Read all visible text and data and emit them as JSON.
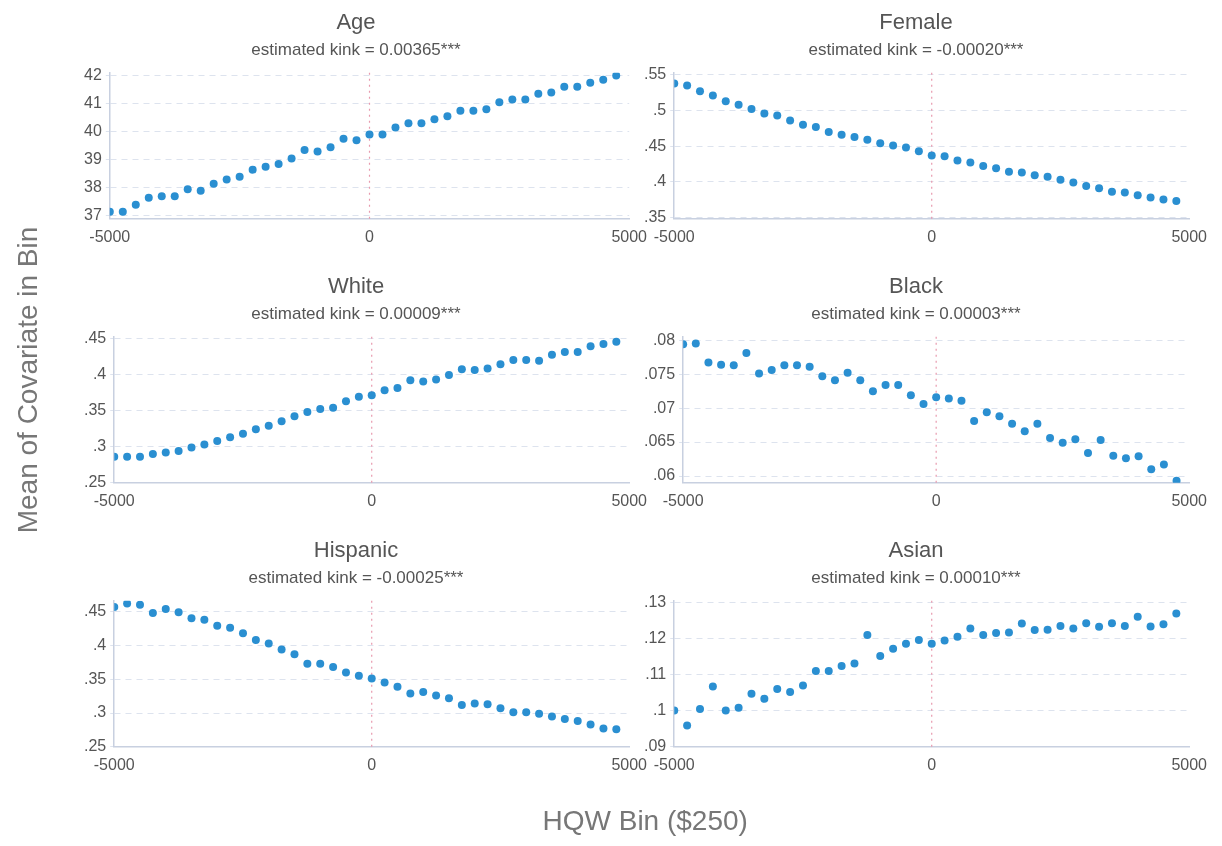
{
  "chart_data": [
    {
      "type": "scatter",
      "title": "Age",
      "subtitle": "estimated kink = 0.00365***",
      "x": [
        -5000,
        -4750,
        -4500,
        -4250,
        -4000,
        -3750,
        -3500,
        -3250,
        -3000,
        -2750,
        -2500,
        -2250,
        -2000,
        -1750,
        -1500,
        -1250,
        -1000,
        -750,
        -500,
        -250,
        0,
        250,
        500,
        750,
        1000,
        1250,
        1500,
        1750,
        2000,
        2250,
        2500,
        2750,
        3000,
        3250,
        3500,
        3750,
        4000,
        4250,
        4500,
        4750
      ],
      "series": [
        {
          "color": "#2a8fd1",
          "values": [
            37.15,
            37.15,
            37.4,
            37.65,
            37.7,
            37.7,
            37.95,
            37.9,
            38.15,
            38.3,
            38.4,
            38.65,
            38.75,
            38.85,
            39.05,
            39.35,
            39.3,
            39.45,
            39.75,
            39.7,
            39.9,
            39.9,
            40.15,
            40.3,
            40.3,
            40.45,
            40.55,
            40.75,
            40.75,
            40.8,
            41.05,
            41.15,
            41.15,
            41.35,
            41.4,
            41.6,
            41.6,
            41.75,
            41.85,
            42.0
          ]
        }
      ],
      "xlim": [
        -5000,
        5000
      ],
      "xticks": [
        -5000,
        0,
        5000
      ],
      "ylim": [
        36.9,
        42.1
      ],
      "yticks": [
        37,
        38,
        39,
        40,
        41,
        42
      ],
      "grid": "y",
      "marker": "circle",
      "ref_lines": [
        {
          "axis": "x",
          "value": 0,
          "color": "#e89aae",
          "line_style": "dotted"
        }
      ]
    },
    {
      "type": "scatter",
      "title": "Female",
      "subtitle": "estimated kink = -0.00020***",
      "x": [
        -5000,
        -4750,
        -4500,
        -4250,
        -4000,
        -3750,
        -3500,
        -3250,
        -3000,
        -2750,
        -2500,
        -2250,
        -2000,
        -1750,
        -1500,
        -1250,
        -1000,
        -750,
        -500,
        -250,
        0,
        250,
        500,
        750,
        1000,
        1250,
        1500,
        1750,
        2000,
        2250,
        2500,
        2750,
        3000,
        3250,
        3500,
        3750,
        4000,
        4250,
        4500,
        4750
      ],
      "series": [
        {
          "color": "#2a8fd1",
          "values": [
            0.538,
            0.535,
            0.527,
            0.521,
            0.513,
            0.508,
            0.502,
            0.496,
            0.493,
            0.486,
            0.48,
            0.477,
            0.47,
            0.466,
            0.463,
            0.459,
            0.454,
            0.451,
            0.448,
            0.443,
            0.437,
            0.436,
            0.43,
            0.427,
            0.422,
            0.419,
            0.414,
            0.413,
            0.409,
            0.407,
            0.403,
            0.399,
            0.394,
            0.391,
            0.386,
            0.385,
            0.381,
            0.378,
            0.375,
            0.373
          ]
        }
      ],
      "xlim": [
        -5000,
        5000
      ],
      "xticks": [
        -5000,
        0,
        5000
      ],
      "ylim": [
        0.348,
        0.553
      ],
      "yticks": [
        {
          "value": 0.35,
          "label": ".35"
        },
        {
          "value": 0.4,
          "label": ".4"
        },
        {
          "value": 0.45,
          "label": ".45"
        },
        {
          "value": 0.5,
          "label": ".5"
        },
        {
          "value": 0.55,
          "label": ".55"
        }
      ],
      "grid": "y",
      "marker": "circle",
      "ref_lines": [
        {
          "axis": "x",
          "value": 0,
          "color": "#e89aae",
          "line_style": "dotted"
        }
      ]
    },
    {
      "type": "scatter",
      "title": "White",
      "subtitle": "estimated kink = 0.00009***",
      "ylabel": "Mean of Covariate in Bin",
      "x": [
        -5000,
        -4750,
        -4500,
        -4250,
        -4000,
        -3750,
        -3500,
        -3250,
        -3000,
        -2750,
        -2500,
        -2250,
        -2000,
        -1750,
        -1500,
        -1250,
        -1000,
        -750,
        -500,
        -250,
        0,
        250,
        500,
        750,
        1000,
        1250,
        1500,
        1750,
        2000,
        2250,
        2500,
        2750,
        3000,
        3250,
        3500,
        3750,
        4000,
        4250,
        4500,
        4750
      ],
      "series": [
        {
          "color": "#2a8fd1",
          "values": [
            0.286,
            0.286,
            0.286,
            0.29,
            0.292,
            0.294,
            0.299,
            0.303,
            0.308,
            0.313,
            0.318,
            0.324,
            0.329,
            0.335,
            0.342,
            0.348,
            0.352,
            0.354,
            0.363,
            0.369,
            0.371,
            0.378,
            0.381,
            0.392,
            0.39,
            0.393,
            0.399,
            0.407,
            0.406,
            0.408,
            0.414,
            0.42,
            0.42,
            0.419,
            0.427,
            0.431,
            0.431,
            0.439,
            0.442,
            0.445
          ]
        }
      ],
      "xlim": [
        -5000,
        5000
      ],
      "xticks": [
        -5000,
        0,
        5000
      ],
      "ylim": [
        0.25,
        0.452
      ],
      "yticks": [
        {
          "value": 0.25,
          "label": ".25"
        },
        {
          "value": 0.3,
          "label": ".3"
        },
        {
          "value": 0.35,
          "label": ".35"
        },
        {
          "value": 0.4,
          "label": ".4"
        },
        {
          "value": 0.45,
          "label": ".45"
        }
      ],
      "grid": "y",
      "marker": "circle",
      "ref_lines": [
        {
          "axis": "x",
          "value": 0,
          "color": "#e89aae",
          "line_style": "dotted"
        }
      ]
    },
    {
      "type": "scatter",
      "title": "Black",
      "subtitle": "estimated kink = 0.00003***",
      "x": [
        -5000,
        -4750,
        -4500,
        -4250,
        -4000,
        -3750,
        -3500,
        -3250,
        -3000,
        -2750,
        -2500,
        -2250,
        -2000,
        -1750,
        -1500,
        -1250,
        -1000,
        -750,
        -500,
        -250,
        0,
        250,
        500,
        750,
        1000,
        1250,
        1500,
        1750,
        2000,
        2250,
        2500,
        2750,
        3000,
        3250,
        3500,
        3750,
        4000,
        4250,
        4500,
        4750
      ],
      "series": [
        {
          "color": "#2a8fd1",
          "values": [
            0.0794,
            0.0795,
            0.0767,
            0.0764,
            0.0763,
            0.0781,
            0.0751,
            0.0756,
            0.0763,
            0.0763,
            0.0761,
            0.0747,
            0.0741,
            0.0752,
            0.0741,
            0.0725,
            0.0734,
            0.0734,
            0.0719,
            0.0706,
            0.0716,
            0.0714,
            0.0711,
            0.0681,
            0.0694,
            0.0688,
            0.0677,
            0.0666,
            0.0677,
            0.0656,
            0.0649,
            0.0654,
            0.0634,
            0.0653,
            0.063,
            0.0626,
            0.0629,
            0.061,
            0.0617,
            0.0593
          ]
        }
      ],
      "xlim": [
        -5000,
        5000
      ],
      "xticks": [
        -5000,
        0,
        5000
      ],
      "ylim": [
        0.059,
        0.0805
      ],
      "yticks": [
        {
          "value": 0.06,
          "label": ".06"
        },
        {
          "value": 0.065,
          "label": ".065"
        },
        {
          "value": 0.07,
          "label": ".07"
        },
        {
          "value": 0.075,
          "label": ".075"
        },
        {
          "value": 0.08,
          "label": ".08"
        }
      ],
      "grid": "y",
      "marker": "circle",
      "ref_lines": [
        {
          "axis": "x",
          "value": 0,
          "color": "#e89aae",
          "line_style": "dotted"
        }
      ]
    },
    {
      "type": "scatter",
      "title": "Hispanic",
      "subtitle": "estimated kink = -0.00025***",
      "xlabel": "HQW Bin ($250)",
      "x": [
        -5000,
        -4750,
        -4500,
        -4250,
        -4000,
        -3750,
        -3500,
        -3250,
        -3000,
        -2750,
        -2500,
        -2250,
        -2000,
        -1750,
        -1500,
        -1250,
        -1000,
        -750,
        -500,
        -250,
        0,
        250,
        500,
        750,
        1000,
        1250,
        1500,
        1750,
        2000,
        2250,
        2500,
        2750,
        3000,
        3250,
        3500,
        3750,
        4000,
        4250,
        4500,
        4750
      ],
      "series": [
        {
          "color": "#2a8fd1",
          "values": [
            0.457,
            0.462,
            0.46,
            0.448,
            0.454,
            0.449,
            0.44,
            0.438,
            0.429,
            0.426,
            0.418,
            0.408,
            0.403,
            0.394,
            0.387,
            0.373,
            0.373,
            0.368,
            0.36,
            0.355,
            0.351,
            0.345,
            0.339,
            0.329,
            0.331,
            0.326,
            0.322,
            0.312,
            0.314,
            0.313,
            0.307,
            0.301,
            0.301,
            0.299,
            0.295,
            0.291,
            0.288,
            0.283,
            0.277,
            0.276
          ]
        }
      ],
      "xlim": [
        -5000,
        5000
      ],
      "xticks": [
        -5000,
        0,
        5000
      ],
      "ylim": [
        0.25,
        0.466
      ],
      "yticks": [
        {
          "value": 0.25,
          "label": ".25"
        },
        {
          "value": 0.3,
          "label": ".3"
        },
        {
          "value": 0.35,
          "label": ".35"
        },
        {
          "value": 0.4,
          "label": ".4"
        },
        {
          "value": 0.45,
          "label": ".45"
        }
      ],
      "grid": "y",
      "marker": "circle",
      "ref_lines": [
        {
          "axis": "x",
          "value": 0,
          "color": "#e89aae",
          "line_style": "dotted"
        }
      ]
    },
    {
      "type": "scatter",
      "title": "Asian",
      "subtitle": "estimated kink = 0.00010***",
      "x": [
        -5000,
        -4750,
        -4500,
        -4250,
        -4000,
        -3750,
        -3500,
        -3250,
        -3000,
        -2750,
        -2500,
        -2250,
        -2000,
        -1750,
        -1500,
        -1250,
        -1000,
        -750,
        -500,
        -250,
        0,
        250,
        500,
        750,
        1000,
        1250,
        1500,
        1750,
        2000,
        2250,
        2500,
        2750,
        3000,
        3250,
        3500,
        3750,
        4000,
        4250,
        4500,
        4750
      ],
      "series": [
        {
          "color": "#2a8fd1",
          "values": [
            0.1001,
            0.0959,
            0.1005,
            0.1067,
            0.1001,
            0.1008,
            0.1047,
            0.1033,
            0.106,
            0.1052,
            0.107,
            0.111,
            0.111,
            0.1124,
            0.1131,
            0.121,
            0.1152,
            0.1172,
            0.1186,
            0.1196,
            0.1186,
            0.1195,
            0.1205,
            0.1228,
            0.121,
            0.1216,
            0.1217,
            0.1242,
            0.1224,
            0.1225,
            0.1235,
            0.1228,
            0.1243,
            0.1233,
            0.1243,
            0.1235,
            0.1261,
            0.1234,
            0.124,
            0.127
          ]
        }
      ],
      "xlim": [
        -5000,
        5000
      ],
      "xticks": [
        -5000,
        0,
        5000
      ],
      "ylim": [
        0.09,
        0.1305
      ],
      "yticks": [
        {
          "value": 0.09,
          "label": ".09"
        },
        {
          "value": 0.1,
          "label": ".1"
        },
        {
          "value": 0.11,
          "label": ".11"
        },
        {
          "value": 0.12,
          "label": ".12"
        },
        {
          "value": 0.13,
          "label": ".13"
        }
      ],
      "grid": "y",
      "marker": "circle",
      "ref_lines": [
        {
          "axis": "x",
          "value": 0,
          "color": "#e89aae",
          "line_style": "dotted"
        }
      ]
    }
  ]
}
